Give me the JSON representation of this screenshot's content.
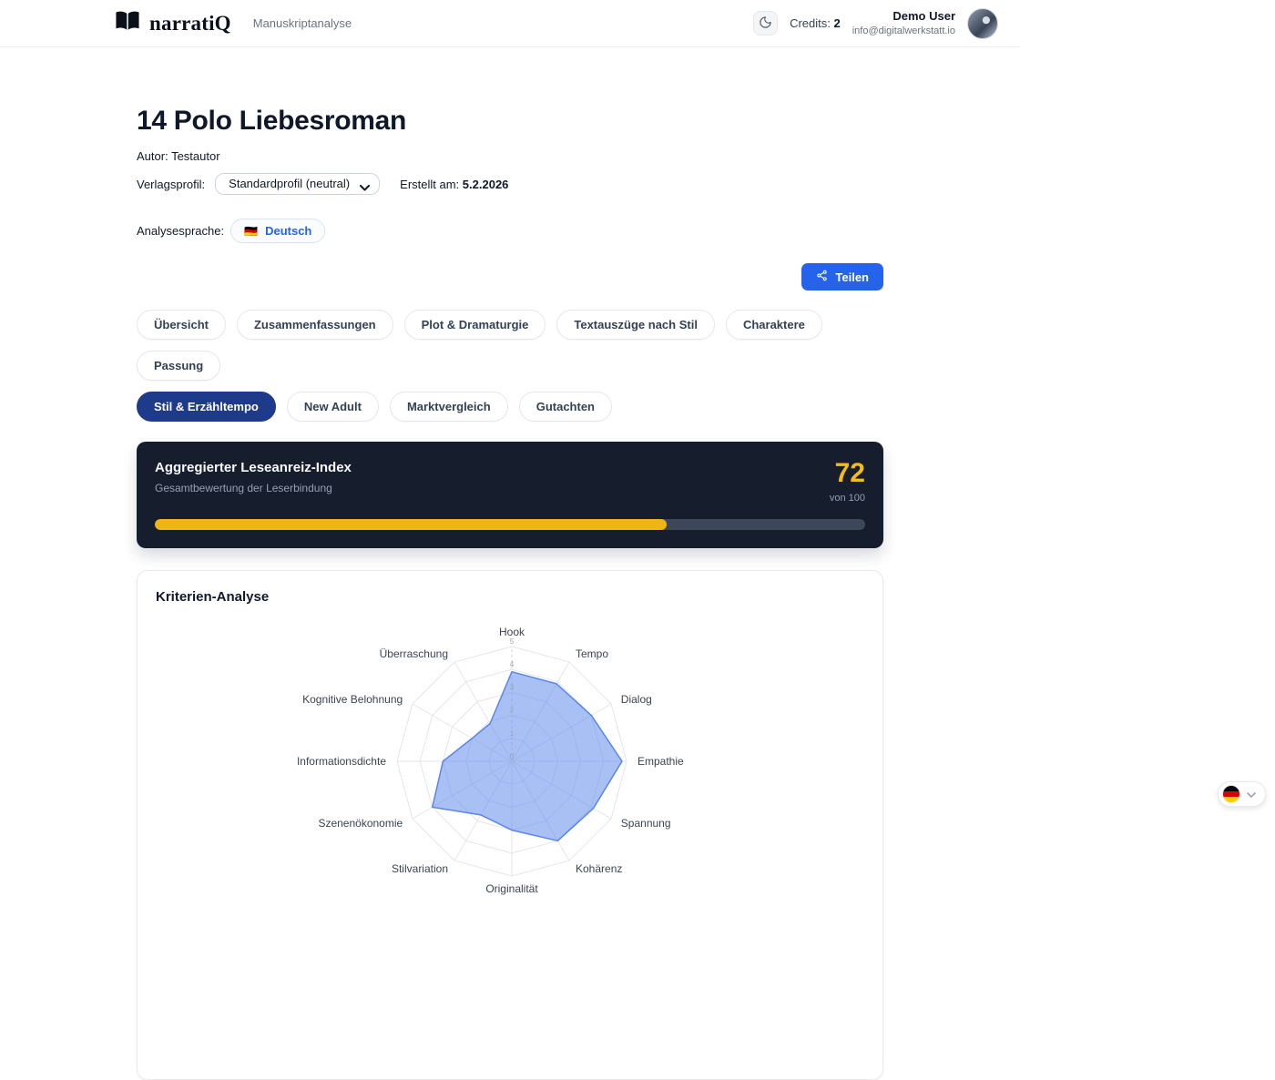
{
  "header": {
    "brand": "narratiQ",
    "subtitle": "Manuskriptanalyse",
    "credits_label": "Credits:",
    "credits_value": "2",
    "user_name": "Demo User",
    "user_email": "info@digitalwerkstatt.io"
  },
  "icons": {
    "logo": "open-book-icon",
    "theme_toggle": "moon-icon",
    "share": "share-nodes-icon",
    "select": "chevron-down-icon",
    "language_flag": "german-flag-icon",
    "picker_flag": "german-flag-icon",
    "picker_chevron": "chevron-down-icon"
  },
  "document": {
    "title": "14 Polo Liebesroman",
    "author_label": "Autor:",
    "author": "Testautor",
    "profile_label": "Verlagsprofil:",
    "profile_value": "Standardprofil (neutral)",
    "created_label": "Erstellt am:",
    "created_value": "5.2.2026",
    "language_label": "Analysesprache:",
    "language_flag": "🇩🇪",
    "language_value": "Deutsch",
    "share_label": "Teilen"
  },
  "tabs": {
    "row1": [
      "Übersicht",
      "Zusammenfassungen",
      "Plot & Dramaturgie",
      "Textauszüge nach Stil",
      "Charaktere",
      "Passung"
    ],
    "row2": [
      "Stil & Erzähltempo",
      "New Adult",
      "Marktvergleich",
      "Gutachten"
    ],
    "active": "Stil & Erzähltempo"
  },
  "score_card": {
    "title": "Aggregierter Leseanreiz-Index",
    "subtitle": "Gesamtbewertung der Leserbindung",
    "score": "72",
    "score_suffix": "von 100",
    "progress_percent": 72,
    "accent_color": "#f0b514",
    "background_color": "#161e2d"
  },
  "criteria_card": {
    "title": "Kriterien-Analyse"
  },
  "chart_data": {
    "type": "radar",
    "categories": [
      "Hook",
      "Tempo",
      "Dialog",
      "Empathie",
      "Spannung",
      "Kohärenz",
      "Originalität",
      "Stilvariation",
      "Szenenökonomie",
      "Informationsdichte",
      "Kognitive Belohnung",
      "Überraschung"
    ],
    "values": [
      3.9,
      3.9,
      4.0,
      4.8,
      4.1,
      4.0,
      3.0,
      2.7,
      4.0,
      3.0,
      2.0,
      1.9
    ],
    "scale": {
      "min": 0,
      "max": 5,
      "ticks": [
        0,
        1,
        2,
        3,
        4,
        5
      ]
    },
    "legend": "none",
    "grid": true,
    "fill_color": "rgba(98,140,235,0.55)",
    "stroke_color": "#5b85e6",
    "grid_color": "#e3e6ea",
    "label_color": "#3b4453",
    "tick_color": "#9aa3ad"
  },
  "colors": {
    "accent_blue": "#2563eb",
    "active_tab_blue": "#1e3a8a",
    "score_yellow": "#f5bb17"
  }
}
